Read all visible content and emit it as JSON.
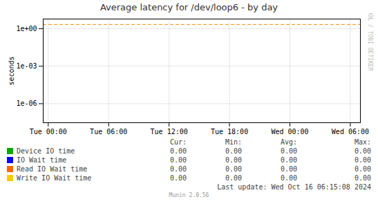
{
  "chart_data": {
    "type": "line",
    "title": "Average latency for /dev/loop6 - by day",
    "ylabel": "seconds",
    "log": "y",
    "grid": true,
    "xlim": [
      -0.5,
      31
    ],
    "xticks": [
      {
        "value": 0,
        "label": "Tue 00:00"
      },
      {
        "value": 6,
        "label": "Tue 06:00"
      },
      {
        "value": 12,
        "label": "Tue 12:00"
      },
      {
        "value": 18,
        "label": "Tue 18:00"
      },
      {
        "value": 24,
        "label": "Wed 00:00"
      },
      {
        "value": 30,
        "label": "Wed 06:00"
      }
    ],
    "ylim": [
      3e-08,
      6.0
    ],
    "yticks": [
      {
        "value": 1e-06,
        "label": "1e-06"
      },
      {
        "value": 0.001,
        "label": "1e-03"
      },
      {
        "value": 1.0,
        "label": "1e+00"
      }
    ],
    "hlines": [
      {
        "value": 2.2,
        "color": "#ff8c00",
        "line_style": "dashed"
      }
    ],
    "stat_headers": [
      "Cur:",
      "Min:",
      "Avg:",
      "Max:"
    ],
    "series": [
      {
        "name": "Device IO time",
        "color": "#00aa00",
        "stats": [
          "0.00",
          "0.00",
          "0.00",
          "0.00"
        ]
      },
      {
        "name": "IO Wait time",
        "color": "#0000ff",
        "stats": [
          "0.00",
          "0.00",
          "0.00",
          "0.00"
        ]
      },
      {
        "name": "Read IO Wait time",
        "color": "#ff6600",
        "stats": [
          "0.00",
          "0.00",
          "0.00",
          "0.00"
        ]
      },
      {
        "name": "Write IO Wait time",
        "color": "#ffcc00",
        "stats": [
          "0.00",
          "0.00",
          "0.00",
          "0.00"
        ]
      }
    ],
    "last_update": "Last update: Wed Oct 16 06:15:08 2024",
    "watermark": "RRDTOOL / TOBI OETIKER",
    "footer": "Munin 2.0.56"
  }
}
